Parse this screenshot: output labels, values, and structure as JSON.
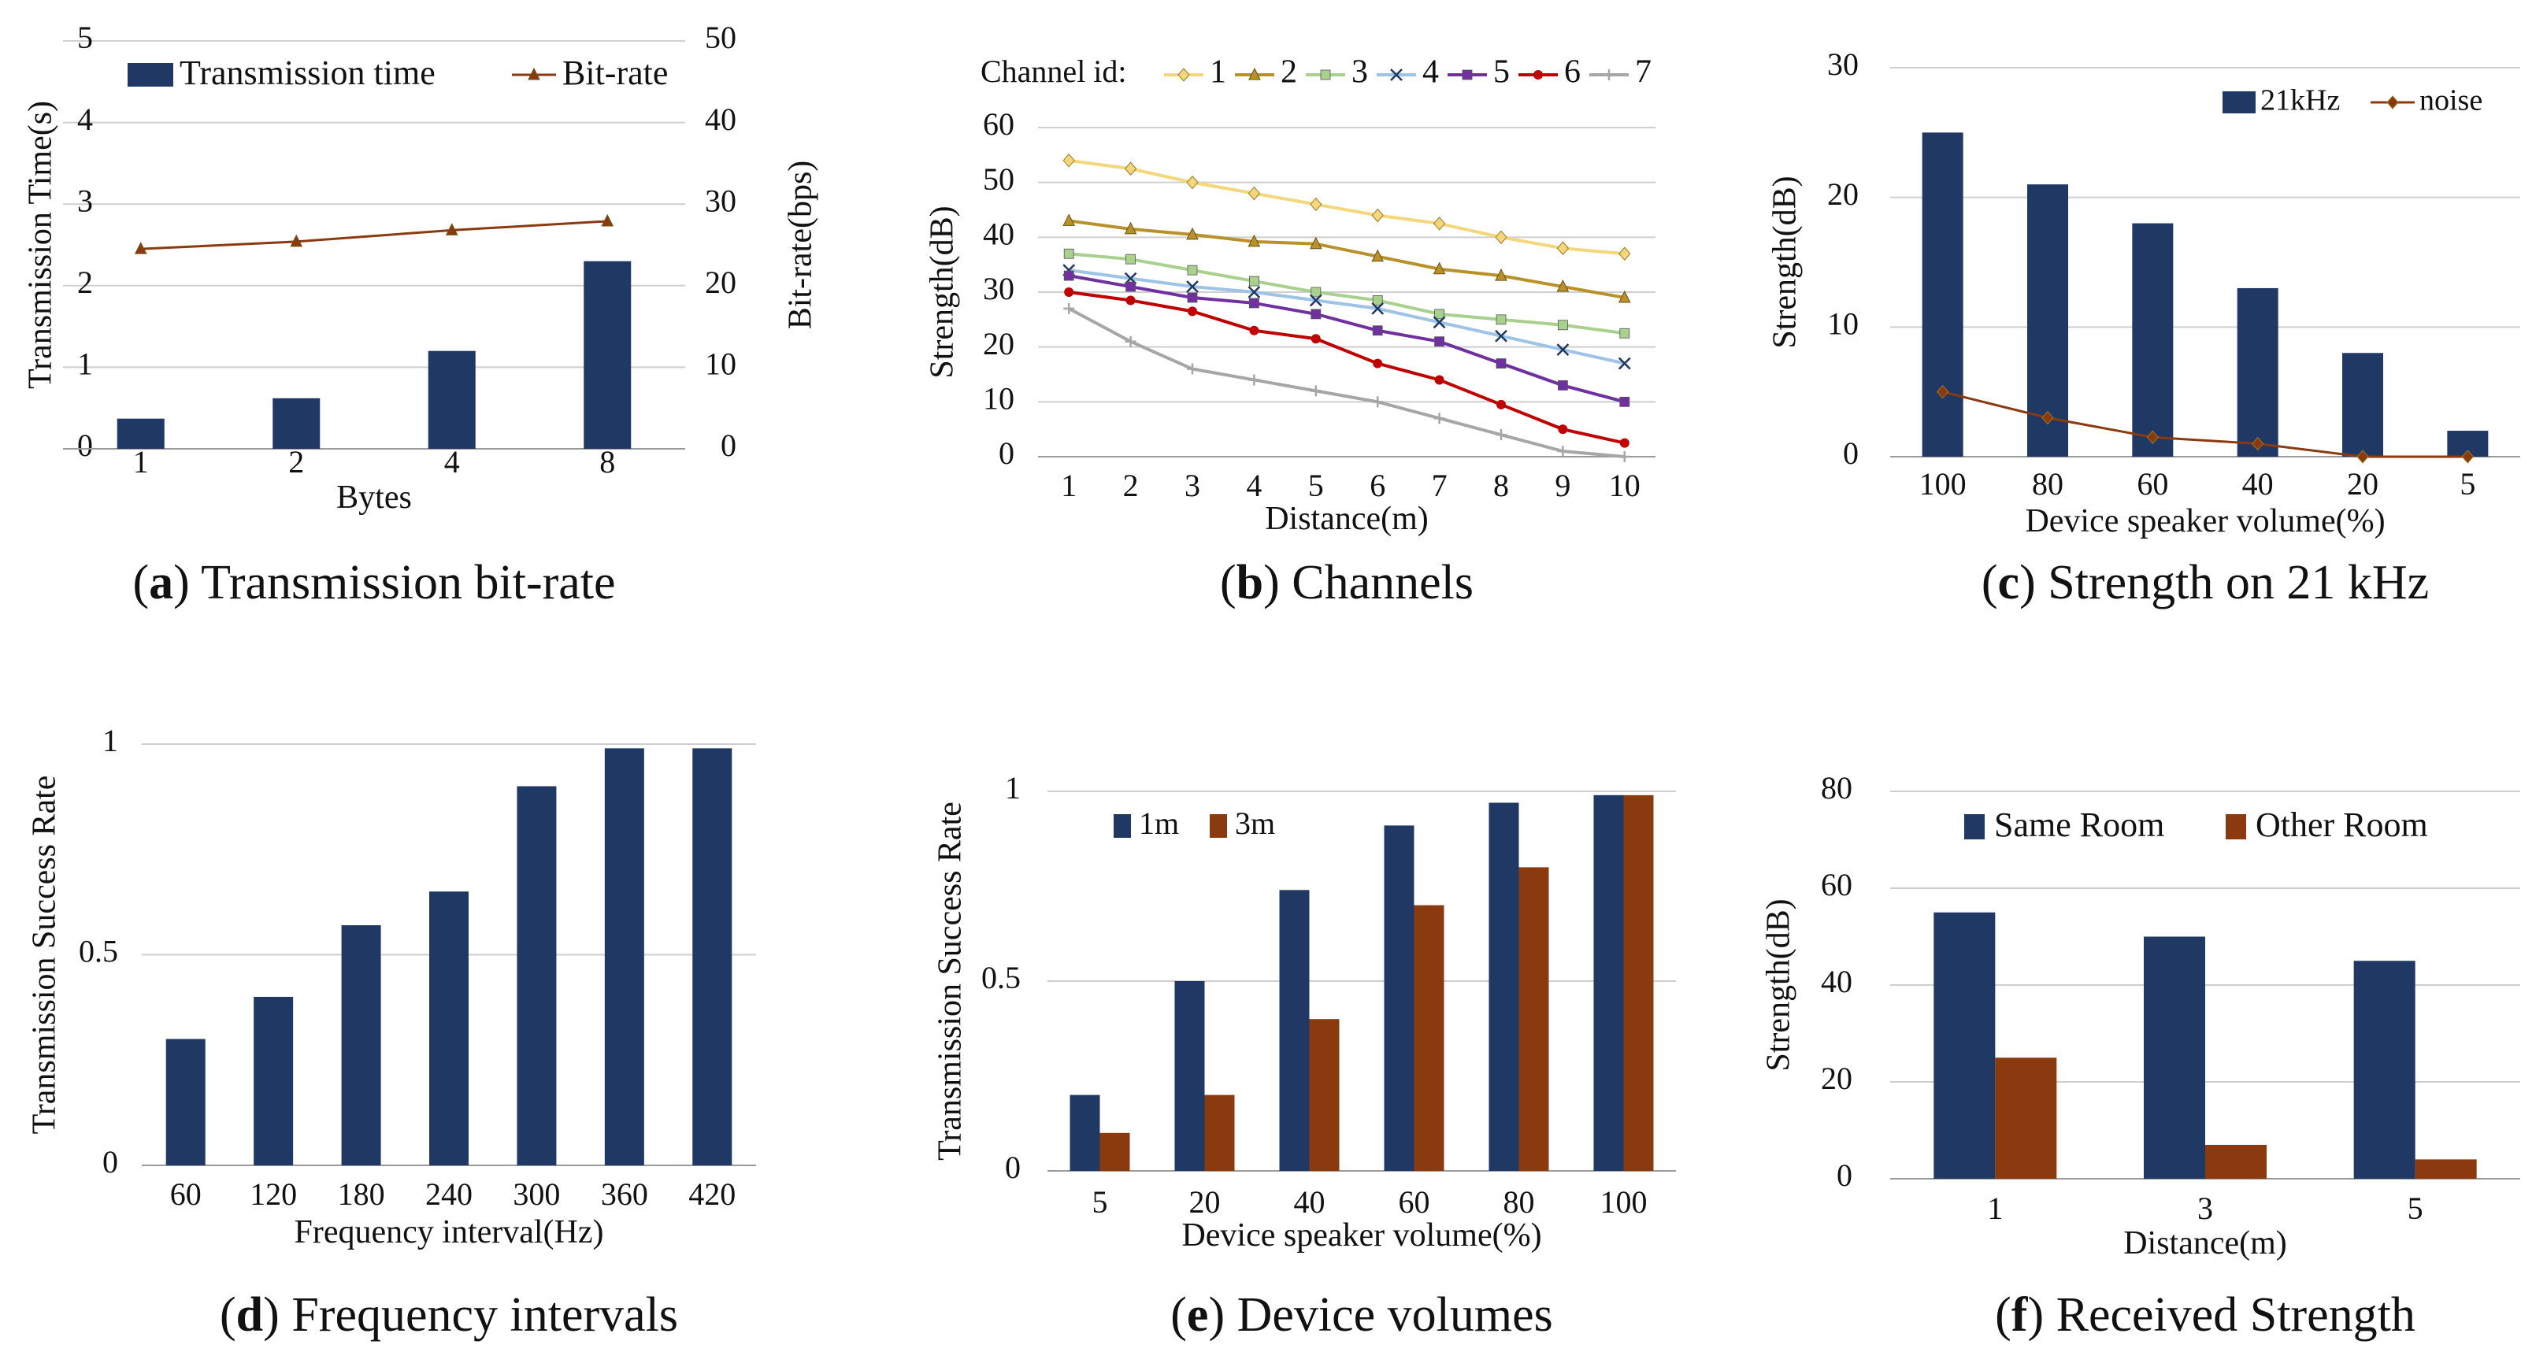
{
  "colors": {
    "navy": "#1f3864",
    "brown": "#8b3a0f",
    "line_brown": "#8b3a0f",
    "grid": "#cfcfcf",
    "axis": "#9a9a9a",
    "ch1": "#f3d77a",
    "ch2": "#b8912a",
    "ch3": "#a9d18e",
    "ch4": "#9dc3e6",
    "ch5": "#7030a0",
    "ch6": "#c00000",
    "ch7": "#a6a6a6"
  },
  "chart_data": [
    {
      "id": "a",
      "type": "bar",
      "caption_letter": "a",
      "caption_text": " Transmission bit-rate",
      "categories": [
        "1",
        "2",
        "4",
        "8"
      ],
      "xlabel": "Bytes",
      "ylabel": "Transmission Time(s)",
      "ylabel_right": "Bit-rate(bps)",
      "ylim": [
        0,
        5
      ],
      "yticks": [
        "0",
        "1",
        "2",
        "3",
        "4",
        "5"
      ],
      "ylim_right": [
        0,
        50
      ],
      "yticks_right": [
        "0",
        "10",
        "20",
        "30",
        "40",
        "50"
      ],
      "grid": true,
      "series": [
        {
          "name": "Transmission time",
          "kind": "bar",
          "values": [
            0.37,
            0.62,
            1.2,
            2.3
          ]
        },
        {
          "name": "Bit-rate",
          "kind": "line",
          "axis": "right",
          "values": [
            24.5,
            25.4,
            26.8,
            27.9
          ]
        }
      ]
    },
    {
      "id": "b",
      "type": "line",
      "caption_letter": "b",
      "caption_text": " Channels",
      "legend_title": "Channel id:",
      "categories": [
        "1",
        "2",
        "3",
        "4",
        "5",
        "6",
        "7",
        "8",
        "9",
        "10"
      ],
      "xlabel": "Distance(m)",
      "ylabel": "Strength(dB)",
      "ylim": [
        0,
        60
      ],
      "yticks": [
        "0",
        "10",
        "20",
        "30",
        "40",
        "50",
        "60"
      ],
      "grid": true,
      "series": [
        {
          "name": "1",
          "marker": "diamond",
          "values": [
            54,
            52.5,
            50,
            48,
            46,
            44,
            42.5,
            40,
            38,
            37
          ]
        },
        {
          "name": "2",
          "marker": "triangle",
          "values": [
            43,
            41.5,
            40.5,
            39.2,
            38.8,
            36.5,
            34.2,
            33,
            31,
            29
          ]
        },
        {
          "name": "3",
          "marker": "square",
          "values": [
            37,
            36,
            34,
            32,
            30,
            28.5,
            26,
            25,
            24,
            22.5
          ]
        },
        {
          "name": "4",
          "marker": "x",
          "values": [
            34,
            32.5,
            31,
            30,
            28.5,
            27,
            24.5,
            22,
            19.5,
            17
          ]
        },
        {
          "name": "5",
          "marker": "square",
          "values": [
            33,
            31,
            29,
            28,
            26,
            23,
            21,
            17,
            13,
            10
          ]
        },
        {
          "name": "6",
          "marker": "circle",
          "values": [
            30,
            28.5,
            26.5,
            23,
            21.5,
            17,
            14,
            9.5,
            5,
            2.5
          ]
        },
        {
          "name": "7",
          "marker": "plus",
          "values": [
            27,
            21,
            16,
            14,
            12,
            10,
            7,
            4,
            1,
            0
          ]
        }
      ]
    },
    {
      "id": "c",
      "type": "bar",
      "caption_letter": "c",
      "caption_text": " Strength on 21 kHz",
      "categories": [
        "100",
        "80",
        "60",
        "40",
        "20",
        "5"
      ],
      "xlabel": "Device speaker volume(%)",
      "ylabel": "Strength(dB)",
      "ylim": [
        0,
        30
      ],
      "yticks": [
        "0",
        "10",
        "20",
        "30"
      ],
      "grid": true,
      "series": [
        {
          "name": "21kHz",
          "kind": "bar",
          "values": [
            25,
            21,
            18,
            13,
            8,
            2
          ]
        },
        {
          "name": "noise",
          "kind": "line",
          "values": [
            5,
            3,
            1.5,
            1,
            0,
            0
          ]
        }
      ]
    },
    {
      "id": "d",
      "type": "bar",
      "caption_letter": "d",
      "caption_text": " Frequency intervals",
      "categories": [
        "60",
        "120",
        "180",
        "240",
        "300",
        "360",
        "420"
      ],
      "xlabel": "Frequency interval(Hz)",
      "ylabel": "Transmission Success Rate",
      "ylim": [
        0,
        1
      ],
      "yticks": [
        "0",
        "0.5",
        "1"
      ],
      "grid": true,
      "series": [
        {
          "name": "Success rate",
          "kind": "bar",
          "values": [
            0.3,
            0.4,
            0.57,
            0.65,
            0.9,
            0.99,
            0.99
          ]
        }
      ]
    },
    {
      "id": "e",
      "type": "bar",
      "caption_letter": "e",
      "caption_text": " Device volumes",
      "categories": [
        "5",
        "20",
        "40",
        "60",
        "80",
        "100"
      ],
      "xlabel": "Device speaker volume(%)",
      "ylabel": "Transmission Success Rate",
      "ylim": [
        0,
        1
      ],
      "yticks": [
        "0",
        "0.5",
        "1"
      ],
      "grid": true,
      "series": [
        {
          "name": "1m",
          "kind": "bar",
          "values": [
            0.2,
            0.5,
            0.74,
            0.91,
            0.97,
            0.99
          ]
        },
        {
          "name": "3m",
          "kind": "bar",
          "values": [
            0.1,
            0.2,
            0.4,
            0.7,
            0.8,
            0.99
          ]
        }
      ]
    },
    {
      "id": "f",
      "type": "bar",
      "caption_letter": "f",
      "caption_text": " Received Strength",
      "categories": [
        "1",
        "3",
        "5"
      ],
      "xlabel": "Distance(m)",
      "ylabel": "Strength(dB)",
      "ylim": [
        0,
        80
      ],
      "yticks": [
        "0",
        "20",
        "40",
        "60",
        "80"
      ],
      "grid": true,
      "series": [
        {
          "name": "Same Room",
          "kind": "bar",
          "values": [
            55,
            50,
            45
          ]
        },
        {
          "name": "Other Room",
          "kind": "bar",
          "values": [
            25,
            7,
            4
          ]
        }
      ]
    }
  ]
}
